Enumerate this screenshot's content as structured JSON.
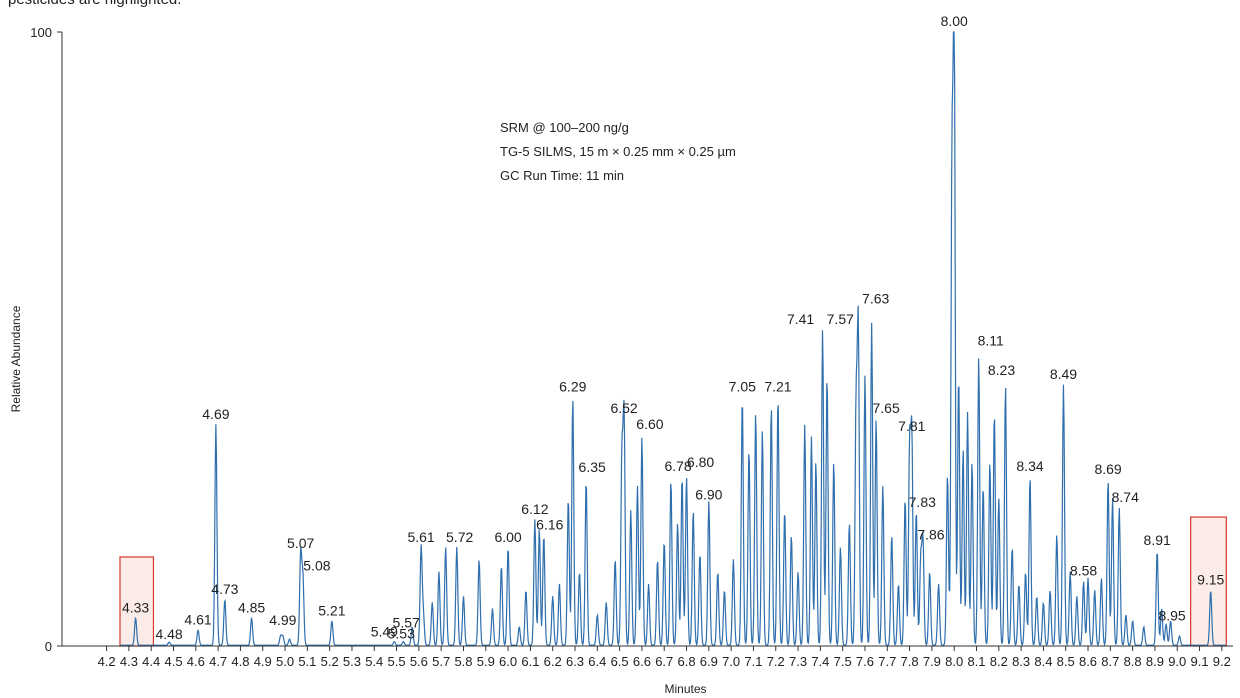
{
  "caption": "pesticides are highlighted.",
  "colors": {
    "trace": "#2f6fad",
    "trace_fill": "#7aa6d2",
    "highlight_stroke": "#d9362b",
    "highlight_fill": "#fbece8"
  },
  "chart_data": {
    "type": "line",
    "xlabel": "Minutes",
    "ylabel": "Relative Abundance",
    "xlim": [
      4.0,
      9.25
    ],
    "ylim": [
      0,
      100
    ],
    "x_ticks": [
      "4.2",
      "4.3",
      "4.4",
      "4.5",
      "4.6",
      "4.7",
      "4.8",
      "4.9",
      "5.0",
      "5.1",
      "5.2",
      "5.3",
      "5.4",
      "5.5",
      "5.6",
      "5.7",
      "5.8",
      "5.9",
      "6.0",
      "6.1",
      "6.2",
      "6.3",
      "6.4",
      "6.5",
      "6.6",
      "6.7",
      "6.8",
      "6.9",
      "7.0",
      "7.1",
      "7.2",
      "7.3",
      "7.4",
      "7.5",
      "7.6",
      "7.7",
      "7.8",
      "7.9",
      "8.0",
      "8.1",
      "8.2",
      "8.3",
      "8.4",
      "8.5",
      "8.6",
      "8.7",
      "8.8",
      "8.9",
      "9.0",
      "9.1",
      "9.2"
    ],
    "y_ticks": [
      "0",
      "100"
    ],
    "annotation_lines": [
      "SRM @ 100–200 ng/g",
      "TG-5 SILMS, 15 m × 0.25 mm × 0.25 µm",
      "GC Run Time: 11 min"
    ],
    "highlighted_ranges": [
      {
        "x": [
          4.26,
          4.41
        ],
        "y": [
          0,
          14.5
        ]
      },
      {
        "x": [
          9.06,
          9.22
        ],
        "y": [
          0,
          21
        ]
      }
    ],
    "peaks": [
      {
        "rt": 4.33,
        "y": 4.5,
        "label": "4.33"
      },
      {
        "rt": 4.48,
        "y": 0.5,
        "label": "4.48"
      },
      {
        "rt": 4.61,
        "y": 2.5,
        "label": "4.61"
      },
      {
        "rt": 4.69,
        "y": 36,
        "label": "4.69"
      },
      {
        "rt": 4.73,
        "y": 7.5,
        "label": "4.73"
      },
      {
        "rt": 4.85,
        "y": 4.5,
        "label": "4.85"
      },
      {
        "rt": 4.99,
        "y": 1.5,
        "label": "4.99"
      },
      {
        "rt": 5.07,
        "y": 15,
        "label": "5.07"
      },
      {
        "rt": 5.08,
        "y": 11,
        "label": "5.08"
      },
      {
        "rt": 5.21,
        "y": 4.0,
        "label": "5.21"
      },
      {
        "rt": 5.49,
        "y": 0.6,
        "label": "5.49"
      },
      {
        "rt": 5.53,
        "y": 0.6,
        "label": "5.53"
      },
      {
        "rt": 5.57,
        "y": 3.0,
        "label": "5.57"
      },
      {
        "rt": 5.61,
        "y": 16,
        "label": "5.61"
      },
      {
        "rt": 5.72,
        "y": 16,
        "label": "5.72"
      },
      {
        "rt": 6.0,
        "y": 16,
        "label": "6.00"
      },
      {
        "rt": 6.12,
        "y": 20.5,
        "label": "6.12"
      },
      {
        "rt": 6.16,
        "y": 18,
        "label": "6.16"
      },
      {
        "rt": 6.29,
        "y": 40.5,
        "label": "6.29"
      },
      {
        "rt": 6.35,
        "y": 27,
        "label": "6.35"
      },
      {
        "rt": 6.52,
        "y": 37,
        "label": "6.52"
      },
      {
        "rt": 6.6,
        "y": 34,
        "label": "6.60"
      },
      {
        "rt": 6.78,
        "y": 27.5,
        "label": "6.78"
      },
      {
        "rt": 6.8,
        "y": 27.5,
        "label": "6.80"
      },
      {
        "rt": 6.9,
        "y": 23.5,
        "label": "6.90"
      },
      {
        "rt": 7.05,
        "y": 40.5,
        "label": "7.05"
      },
      {
        "rt": 7.21,
        "y": 40.5,
        "label": "7.21"
      },
      {
        "rt": 7.41,
        "y": 51.5,
        "label": "7.41"
      },
      {
        "rt": 7.57,
        "y": 51.5,
        "label": "7.57"
      },
      {
        "rt": 7.63,
        "y": 52.5,
        "label": "7.63"
      },
      {
        "rt": 7.65,
        "y": 37,
        "label": "7.65"
      },
      {
        "rt": 7.81,
        "y": 34,
        "label": "7.81"
      },
      {
        "rt": 7.83,
        "y": 22,
        "label": "7.83"
      },
      {
        "rt": 7.86,
        "y": 17,
        "label": "7.86"
      },
      {
        "rt": 8.0,
        "y": 100,
        "label": "8.00"
      },
      {
        "rt": 8.11,
        "y": 47,
        "label": "8.11"
      },
      {
        "rt": 8.23,
        "y": 42.5,
        "label": "8.23"
      },
      {
        "rt": 8.34,
        "y": 27.5,
        "label": "8.34"
      },
      {
        "rt": 8.49,
        "y": 42.5,
        "label": "8.49"
      },
      {
        "rt": 8.58,
        "y": 10.5,
        "label": "8.58"
      },
      {
        "rt": 8.69,
        "y": 27,
        "label": "8.69"
      },
      {
        "rt": 8.74,
        "y": 22.5,
        "label": "8.74"
      },
      {
        "rt": 8.91,
        "y": 15.5,
        "label": "8.91"
      },
      {
        "rt": 8.95,
        "y": 3.5,
        "label": "8.95"
      },
      {
        "rt": 9.15,
        "y": 9.0,
        "label": "9.15"
      }
    ],
    "unlabeled_peaks": [
      {
        "rt": 4.98,
        "y": 1.5
      },
      {
        "rt": 5.02,
        "y": 1.0
      },
      {
        "rt": 5.62,
        "y": 5
      },
      {
        "rt": 5.66,
        "y": 7
      },
      {
        "rt": 5.69,
        "y": 12
      },
      {
        "rt": 5.77,
        "y": 16
      },
      {
        "rt": 5.8,
        "y": 8
      },
      {
        "rt": 5.87,
        "y": 14
      },
      {
        "rt": 5.93,
        "y": 6
      },
      {
        "rt": 5.97,
        "y": 13
      },
      {
        "rt": 6.05,
        "y": 3
      },
      {
        "rt": 6.08,
        "y": 9
      },
      {
        "rt": 6.14,
        "y": 19
      },
      {
        "rt": 6.2,
        "y": 8
      },
      {
        "rt": 6.23,
        "y": 10
      },
      {
        "rt": 6.27,
        "y": 24
      },
      {
        "rt": 6.32,
        "y": 12
      },
      {
        "rt": 6.4,
        "y": 5
      },
      {
        "rt": 6.44,
        "y": 7
      },
      {
        "rt": 6.48,
        "y": 14
      },
      {
        "rt": 6.51,
        "y": 30
      },
      {
        "rt": 6.55,
        "y": 22
      },
      {
        "rt": 6.58,
        "y": 26
      },
      {
        "rt": 6.63,
        "y": 10
      },
      {
        "rt": 6.67,
        "y": 14
      },
      {
        "rt": 6.7,
        "y": 17
      },
      {
        "rt": 6.73,
        "y": 27
      },
      {
        "rt": 6.76,
        "y": 20
      },
      {
        "rt": 6.83,
        "y": 22
      },
      {
        "rt": 6.86,
        "y": 15
      },
      {
        "rt": 6.94,
        "y": 12
      },
      {
        "rt": 6.97,
        "y": 9
      },
      {
        "rt": 7.01,
        "y": 14
      },
      {
        "rt": 7.08,
        "y": 32
      },
      {
        "rt": 7.11,
        "y": 38
      },
      {
        "rt": 7.14,
        "y": 35
      },
      {
        "rt": 7.18,
        "y": 39
      },
      {
        "rt": 7.24,
        "y": 22
      },
      {
        "rt": 7.27,
        "y": 18
      },
      {
        "rt": 7.3,
        "y": 12
      },
      {
        "rt": 7.33,
        "y": 36
      },
      {
        "rt": 7.36,
        "y": 34
      },
      {
        "rt": 7.38,
        "y": 30
      },
      {
        "rt": 7.43,
        "y": 44
      },
      {
        "rt": 7.46,
        "y": 30
      },
      {
        "rt": 7.49,
        "y": 16
      },
      {
        "rt": 7.53,
        "y": 20
      },
      {
        "rt": 7.56,
        "y": 38
      },
      {
        "rt": 7.6,
        "y": 44
      },
      {
        "rt": 7.68,
        "y": 26
      },
      {
        "rt": 7.72,
        "y": 18
      },
      {
        "rt": 7.75,
        "y": 10
      },
      {
        "rt": 7.78,
        "y": 24
      },
      {
        "rt": 7.8,
        "y": 32
      },
      {
        "rt": 7.85,
        "y": 14
      },
      {
        "rt": 7.89,
        "y": 12
      },
      {
        "rt": 7.93,
        "y": 10
      },
      {
        "rt": 7.97,
        "y": 28
      },
      {
        "rt": 7.99,
        "y": 76
      },
      {
        "rt": 8.02,
        "y": 44
      },
      {
        "rt": 8.04,
        "y": 32
      },
      {
        "rt": 8.06,
        "y": 38
      },
      {
        "rt": 8.08,
        "y": 30
      },
      {
        "rt": 8.13,
        "y": 26
      },
      {
        "rt": 8.16,
        "y": 30
      },
      {
        "rt": 8.18,
        "y": 38
      },
      {
        "rt": 8.2,
        "y": 24
      },
      {
        "rt": 8.26,
        "y": 16
      },
      {
        "rt": 8.29,
        "y": 10
      },
      {
        "rt": 8.32,
        "y": 12
      },
      {
        "rt": 8.37,
        "y": 8
      },
      {
        "rt": 8.4,
        "y": 7
      },
      {
        "rt": 8.43,
        "y": 9
      },
      {
        "rt": 8.46,
        "y": 18
      },
      {
        "rt": 8.52,
        "y": 12
      },
      {
        "rt": 8.55,
        "y": 8
      },
      {
        "rt": 8.6,
        "y": 11
      },
      {
        "rt": 8.63,
        "y": 9
      },
      {
        "rt": 8.66,
        "y": 11
      },
      {
        "rt": 8.71,
        "y": 24
      },
      {
        "rt": 8.77,
        "y": 5
      },
      {
        "rt": 8.8,
        "y": 4
      },
      {
        "rt": 8.85,
        "y": 3
      },
      {
        "rt": 8.93,
        "y": 6
      },
      {
        "rt": 8.97,
        "y": 4
      },
      {
        "rt": 9.01,
        "y": 1.5
      }
    ]
  }
}
